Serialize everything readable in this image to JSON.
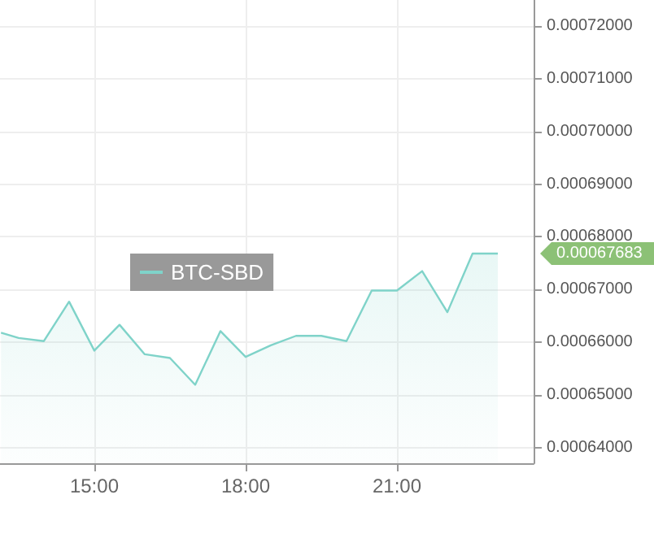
{
  "chart_data": {
    "type": "area",
    "x": [
      13.15,
      13.5,
      14,
      14.5,
      15,
      15.5,
      16,
      16.5,
      17,
      17.5,
      18,
      18.5,
      19,
      19.5,
      20,
      20.5,
      21,
      21.5,
      22,
      22.5,
      23
    ],
    "series": [
      {
        "name": "BTC-SBD",
        "color": "#7fd3c9",
        "values": [
          0.0006618,
          0.0006608,
          0.0006602,
          0.0006677,
          0.0006584,
          0.0006633,
          0.0006577,
          0.000657,
          0.0006519,
          0.0006621,
          0.0006572,
          0.0006594,
          0.0006612,
          0.0006612,
          0.0006602,
          0.0006698,
          0.0006698,
          0.0006735,
          0.0006657,
          0.00067683,
          0.00067683
        ]
      }
    ],
    "xlim": [
      13.13,
      23.71
    ],
    "xticks": [
      {
        "value": 15,
        "label": "15:00"
      },
      {
        "value": 18,
        "label": "18:00"
      },
      {
        "value": 21,
        "label": "21:00"
      }
    ],
    "ylim": [
      0.000637,
      0.000725
    ],
    "yticks": [
      {
        "value": 0.00064,
        "label": "0.00064000"
      },
      {
        "value": 0.00065,
        "label": "0.00065000"
      },
      {
        "value": 0.00066,
        "label": "0.00066000"
      },
      {
        "value": 0.00067,
        "label": "0.00067000"
      },
      {
        "value": 0.00068,
        "label": "0.00068000"
      },
      {
        "value": 0.00069,
        "label": "0.00069000"
      },
      {
        "value": 0.0007,
        "label": "0.00070000"
      },
      {
        "value": 0.00071,
        "label": "0.00071000"
      },
      {
        "value": 0.00072,
        "label": "0.00072000"
      }
    ],
    "annotations": [
      "0.00067683"
    ],
    "grid": true,
    "legend": "center",
    "marker": "none"
  }
}
